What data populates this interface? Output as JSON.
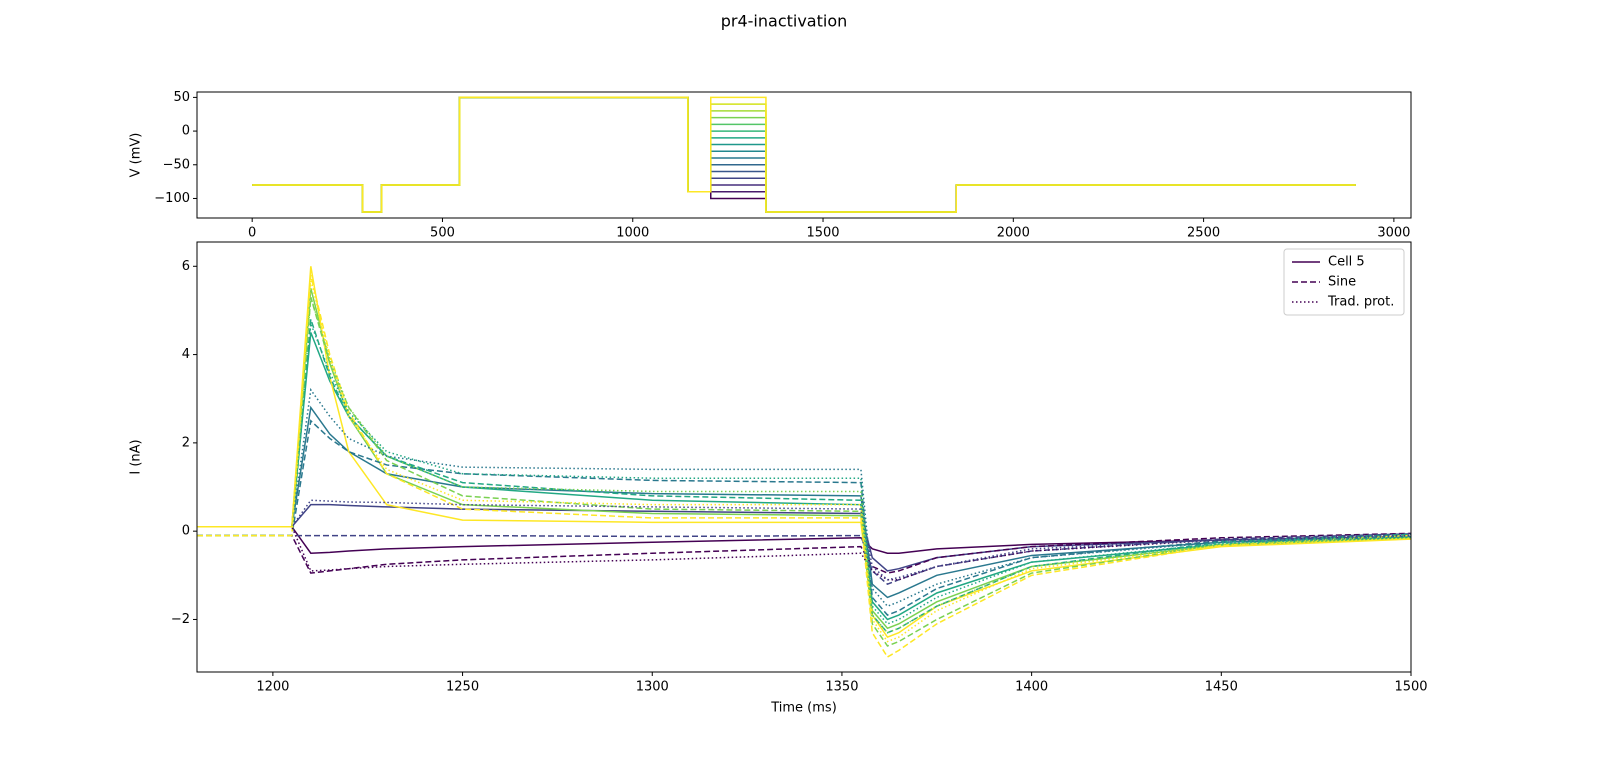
{
  "title": "pr4-inactivation",
  "chart_data": [
    {
      "type": "line",
      "ylabel": "V (mV)",
      "xlim": [
        -145,
        3045
      ],
      "ylim": [
        -129,
        58
      ],
      "xticks": [
        0,
        500,
        1000,
        1500,
        2000,
        2500,
        3000
      ],
      "yticks": [
        {
          "value": -100,
          "label": "−100"
        },
        {
          "value": -50,
          "label": "−50"
        },
        0,
        50
      ],
      "x": [
        0,
        290,
        290,
        340,
        340,
        545,
        545,
        1145,
        1145,
        1205,
        1205,
        1350,
        1350,
        1850,
        1850,
        2900
      ],
      "series": [
        {
          "color": "#440154",
          "dash": "solid",
          "values": [
            -80,
            -80,
            -120,
            -120,
            -80,
            -80,
            50,
            50,
            -90,
            -90,
            -100,
            -100,
            -120,
            -120,
            -80,
            -80
          ]
        },
        {
          "color": "#481a6c",
          "dash": "solid",
          "values": [
            -80,
            -80,
            -120,
            -120,
            -80,
            -80,
            50,
            50,
            -90,
            -90,
            -90,
            -90,
            -120,
            -120,
            -80,
            -80
          ]
        },
        {
          "color": "#472f7d",
          "dash": "solid",
          "values": [
            -80,
            -80,
            -120,
            -120,
            -80,
            -80,
            50,
            50,
            -90,
            -90,
            -80,
            -80,
            -120,
            -120,
            -80,
            -80
          ]
        },
        {
          "color": "#414487",
          "dash": "solid",
          "values": [
            -80,
            -80,
            -120,
            -120,
            -80,
            -80,
            50,
            50,
            -90,
            -90,
            -70,
            -70,
            -120,
            -120,
            -80,
            -80
          ]
        },
        {
          "color": "#39568c",
          "dash": "solid",
          "values": [
            -80,
            -80,
            -120,
            -120,
            -80,
            -80,
            50,
            50,
            -90,
            -90,
            -60,
            -60,
            -120,
            -120,
            -80,
            -80
          ]
        },
        {
          "color": "#31688e",
          "dash": "solid",
          "values": [
            -80,
            -80,
            -120,
            -120,
            -80,
            -80,
            50,
            50,
            -90,
            -90,
            -50,
            -50,
            -120,
            -120,
            -80,
            -80
          ]
        },
        {
          "color": "#2a788e",
          "dash": "solid",
          "values": [
            -80,
            -80,
            -120,
            -120,
            -80,
            -80,
            50,
            50,
            -90,
            -90,
            -40,
            -40,
            -120,
            -120,
            -80,
            -80
          ]
        },
        {
          "color": "#23888e",
          "dash": "solid",
          "values": [
            -80,
            -80,
            -120,
            -120,
            -80,
            -80,
            50,
            50,
            -90,
            -90,
            -30,
            -30,
            -120,
            -120,
            -80,
            -80
          ]
        },
        {
          "color": "#1f988b",
          "dash": "solid",
          "values": [
            -80,
            -80,
            -120,
            -120,
            -80,
            -80,
            50,
            50,
            -90,
            -90,
            -20,
            -20,
            -120,
            -120,
            -80,
            -80
          ]
        },
        {
          "color": "#22a884",
          "dash": "solid",
          "values": [
            -80,
            -80,
            -120,
            -120,
            -80,
            -80,
            50,
            50,
            -90,
            -90,
            -10,
            -10,
            -120,
            -120,
            -80,
            -80
          ]
        },
        {
          "color": "#35b779",
          "dash": "solid",
          "values": [
            -80,
            -80,
            -120,
            -120,
            -80,
            -80,
            50,
            50,
            -90,
            -90,
            0,
            0,
            -120,
            -120,
            -80,
            -80
          ]
        },
        {
          "color": "#54c568",
          "dash": "solid",
          "values": [
            -80,
            -80,
            -120,
            -120,
            -80,
            -80,
            50,
            50,
            -90,
            -90,
            10,
            10,
            -120,
            -120,
            -80,
            -80
          ]
        },
        {
          "color": "#7ad151",
          "dash": "solid",
          "values": [
            -80,
            -80,
            -120,
            -120,
            -80,
            -80,
            50,
            50,
            -90,
            -90,
            20,
            20,
            -120,
            -120,
            -80,
            -80
          ]
        },
        {
          "color": "#a5db36",
          "dash": "solid",
          "values": [
            -80,
            -80,
            -120,
            -120,
            -80,
            -80,
            50,
            50,
            -90,
            -90,
            30,
            30,
            -120,
            -120,
            -80,
            -80
          ]
        },
        {
          "color": "#d2e21b",
          "dash": "solid",
          "values": [
            -80,
            -80,
            -120,
            -120,
            -80,
            -80,
            50,
            50,
            -90,
            -90,
            40,
            40,
            -120,
            -120,
            -80,
            -80
          ]
        },
        {
          "color": "#fde725",
          "dash": "solid",
          "values": [
            -80,
            -80,
            -120,
            -120,
            -80,
            -80,
            50,
            50,
            -90,
            -90,
            50,
            50,
            -120,
            -120,
            -80,
            -80
          ]
        }
      ]
    },
    {
      "type": "line",
      "xlabel": "Time (ms)",
      "ylabel": "I (nA)",
      "xlim": [
        1180,
        1500
      ],
      "ylim": [
        -3.19,
        6.55
      ],
      "xticks": [
        1200,
        1250,
        1300,
        1350,
        1400,
        1450,
        1500
      ],
      "yticks": [
        {
          "value": -2,
          "label": "−2"
        },
        0,
        2,
        4,
        6
      ],
      "legend": {
        "loc": "upper right",
        "entries": [
          {
            "label": "Cell 5",
            "dash": "solid",
            "color": "#440154"
          },
          {
            "label": "Sine",
            "dash": "dashed",
            "color": "#440154"
          },
          {
            "label": "Trad. prot.",
            "dash": "dotted",
            "color": "#440154"
          }
        ]
      },
      "x": [
        1180,
        1205,
        1210,
        1215,
        1220,
        1230,
        1250,
        1300,
        1355,
        1358,
        1362,
        1365,
        1375,
        1400,
        1450,
        1500
      ],
      "series": [
        {
          "color": "#440154",
          "dash": "solid",
          "values": [
            0.1,
            0.1,
            -0.5,
            -0.48,
            -0.45,
            -0.4,
            -0.35,
            -0.25,
            -0.15,
            -0.4,
            -0.5,
            -0.5,
            -0.4,
            -0.3,
            -0.2,
            -0.12
          ]
        },
        {
          "color": "#414487",
          "dash": "solid",
          "values": [
            0.1,
            0.1,
            0.6,
            0.6,
            0.58,
            0.55,
            0.5,
            0.45,
            0.4,
            -0.6,
            -0.9,
            -0.85,
            -0.6,
            -0.35,
            -0.2,
            -0.12
          ]
        },
        {
          "color": "#2a788e",
          "dash": "solid",
          "values": [
            0.1,
            0.1,
            2.8,
            2.2,
            1.8,
            1.3,
            1.0,
            0.85,
            0.8,
            -1.2,
            -1.5,
            -1.4,
            -1.0,
            -0.55,
            -0.25,
            -0.13
          ]
        },
        {
          "color": "#22a884",
          "dash": "solid",
          "values": [
            0.1,
            0.1,
            4.5,
            3.4,
            2.6,
            1.7,
            1.0,
            0.7,
            0.6,
            -1.6,
            -2.0,
            -1.9,
            -1.4,
            -0.7,
            -0.3,
            -0.15
          ]
        },
        {
          "color": "#7ad151",
          "dash": "solid",
          "values": [
            0.1,
            0.1,
            5.5,
            3.8,
            2.6,
            1.3,
            0.6,
            0.4,
            0.35,
            -1.8,
            -2.2,
            -2.1,
            -1.6,
            -0.8,
            -0.32,
            -0.17
          ]
        },
        {
          "color": "#fde725",
          "dash": "solid",
          "values": [
            0.1,
            0.1,
            6.0,
            3.5,
            1.8,
            0.6,
            0.25,
            0.2,
            0.2,
            -1.9,
            -2.4,
            -2.3,
            -1.7,
            -0.9,
            -0.35,
            -0.18
          ]
        },
        {
          "color": "#440154",
          "dash": "dashed",
          "values": [
            -0.1,
            -0.1,
            -0.95,
            -0.9,
            -0.85,
            -0.75,
            -0.65,
            -0.5,
            -0.35,
            -0.8,
            -0.95,
            -0.9,
            -0.6,
            -0.35,
            -0.15,
            -0.05
          ]
        },
        {
          "color": "#414487",
          "dash": "dashed",
          "values": [
            -0.1,
            -0.1,
            -0.1,
            -0.1,
            -0.1,
            -0.1,
            -0.1,
            -0.12,
            -0.1,
            -0.9,
            -1.2,
            -1.1,
            -0.8,
            -0.45,
            -0.18,
            -0.06
          ]
        },
        {
          "color": "#2a788e",
          "dash": "dashed",
          "values": [
            -0.1,
            -0.1,
            2.5,
            2.1,
            1.8,
            1.5,
            1.3,
            1.15,
            1.1,
            -1.5,
            -1.9,
            -1.8,
            -1.3,
            -0.6,
            -0.22,
            -0.07
          ]
        },
        {
          "color": "#22a884",
          "dash": "dashed",
          "values": [
            -0.1,
            -0.1,
            4.8,
            3.5,
            2.6,
            1.7,
            1.1,
            0.8,
            0.7,
            -1.9,
            -2.3,
            -2.2,
            -1.7,
            -0.8,
            -0.25,
            -0.08
          ]
        },
        {
          "color": "#7ad151",
          "dash": "dashed",
          "values": [
            -0.1,
            -0.1,
            5.3,
            3.8,
            2.8,
            1.6,
            0.8,
            0.5,
            0.45,
            -2.1,
            -2.6,
            -2.5,
            -2.0,
            -0.95,
            -0.3,
            -0.1
          ]
        },
        {
          "color": "#fde725",
          "dash": "dashed",
          "values": [
            -0.1,
            -0.1,
            5.8,
            4.0,
            2.7,
            1.3,
            0.5,
            0.3,
            0.3,
            -2.3,
            -2.85,
            -2.7,
            -2.1,
            -1.0,
            -0.32,
            -0.1
          ]
        },
        {
          "color": "#440154",
          "dash": "dotted",
          "values": [
            0.1,
            0.1,
            -0.9,
            -0.88,
            -0.85,
            -0.8,
            -0.75,
            -0.65,
            -0.5,
            -0.9,
            -1.1,
            -1.1,
            -0.8,
            -0.45,
            -0.2,
            -0.1
          ]
        },
        {
          "color": "#414487",
          "dash": "dotted",
          "values": [
            0.1,
            0.1,
            0.7,
            0.68,
            0.66,
            0.65,
            0.6,
            0.55,
            0.5,
            -0.8,
            -1.1,
            -1.05,
            -0.8,
            -0.4,
            -0.2,
            -0.1
          ]
        },
        {
          "color": "#2a788e",
          "dash": "dotted",
          "values": [
            0.1,
            0.1,
            3.2,
            2.6,
            2.1,
            1.7,
            1.45,
            1.4,
            1.4,
            -1.3,
            -1.7,
            -1.6,
            -1.2,
            -0.6,
            -0.25,
            -0.12
          ]
        },
        {
          "color": "#22a884",
          "dash": "dotted",
          "values": [
            0.1,
            0.1,
            4.7,
            3.6,
            2.7,
            1.8,
            1.3,
            1.2,
            1.2,
            -1.7,
            -2.1,
            -2.0,
            -1.5,
            -0.7,
            -0.28,
            -0.13
          ]
        },
        {
          "color": "#7ad151",
          "dash": "dotted",
          "values": [
            0.1,
            0.1,
            5.3,
            3.9,
            2.8,
            1.7,
            1.0,
            0.9,
            0.9,
            -1.9,
            -2.3,
            -2.2,
            -1.7,
            -0.8,
            -0.3,
            -0.15
          ]
        },
        {
          "color": "#fde725",
          "dash": "dotted",
          "values": [
            0.1,
            0.1,
            5.7,
            3.9,
            2.6,
            1.4,
            0.7,
            0.6,
            0.6,
            -2.0,
            -2.5,
            -2.4,
            -1.8,
            -0.85,
            -0.32,
            -0.16
          ]
        }
      ]
    }
  ]
}
